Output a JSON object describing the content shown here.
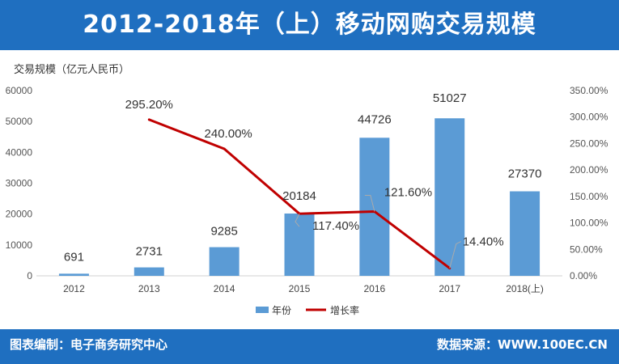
{
  "header": {
    "title": "2012-2018年（上）移动网购交易规模"
  },
  "footer": {
    "left": "图表编制：电子商务研究中心",
    "right": "数据来源：WWW.100EC.CN"
  },
  "chart_data": {
    "type": "bar",
    "categories": [
      "2012",
      "2013",
      "2014",
      "2015",
      "2016",
      "2017",
      "2018(上)"
    ],
    "y_axis_label": "交易规模（亿元人民币）",
    "ylim": [
      0,
      60000
    ],
    "y_ticks": [
      0,
      10000,
      20000,
      30000,
      40000,
      50000,
      60000
    ],
    "y_tick_labels": [
      "0",
      "10000",
      "20000",
      "30000",
      "40000",
      "50000",
      "60000"
    ],
    "y2lim": [
      0,
      350
    ],
    "y2_ticks": [
      0,
      50,
      100,
      150,
      200,
      250,
      300,
      350
    ],
    "y2_tick_labels": [
      "0.00%",
      "50.00%",
      "100.00%",
      "150.00%",
      "200.00%",
      "250.00%",
      "300.00%",
      "350.00%"
    ],
    "legend_position": "bottom",
    "series": [
      {
        "name": "年份",
        "type": "bar",
        "axis": "left",
        "color": "#5b9bd5",
        "values": [
          691,
          2731,
          9285,
          20184,
          44726,
          51027,
          27370
        ],
        "labels": [
          "691",
          "2731",
          "9285",
          "20184",
          "44726",
          "51027",
          "27370"
        ]
      },
      {
        "name": "增长率",
        "type": "line",
        "axis": "right",
        "color": "#c00000",
        "values": [
          null,
          295.2,
          240.0,
          117.4,
          121.6,
          14.4,
          null
        ],
        "labels": [
          "",
          "295.20%",
          "240.00%",
          "117.40%",
          "121.60%",
          "14.40%",
          ""
        ]
      }
    ],
    "grid": false
  }
}
